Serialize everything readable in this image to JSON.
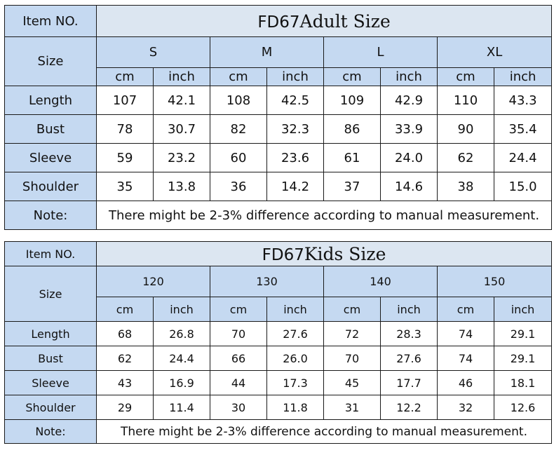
{
  "adult": {
    "item_label": "Item NO.",
    "code": "FD67",
    "title": "Adult Size",
    "size_label": "Size",
    "sizes": [
      "S",
      "M",
      "L",
      "XL"
    ],
    "units": [
      "cm",
      "inch"
    ],
    "rows": [
      {
        "label": "Length",
        "values": [
          "107",
          "42.1",
          "108",
          "42.5",
          "109",
          "42.9",
          "110",
          "43.3"
        ]
      },
      {
        "label": "Bust",
        "values": [
          "78",
          "30.7",
          "82",
          "32.3",
          "86",
          "33.9",
          "90",
          "35.4"
        ]
      },
      {
        "label": "Sleeve",
        "values": [
          "59",
          "23.2",
          "60",
          "23.6",
          "61",
          "24.0",
          "62",
          "24.4"
        ]
      },
      {
        "label": "Shoulder",
        "values": [
          "35",
          "13.8",
          "36",
          "14.2",
          "37",
          "14.6",
          "38",
          "15.0"
        ]
      }
    ],
    "note_label": "Note:",
    "note_text": "There might be 2-3% difference according to manual measurement."
  },
  "kids": {
    "item_label": "Item NO.",
    "code": "FD67",
    "title": "Kids Size",
    "size_label": "Size",
    "sizes": [
      "120",
      "130",
      "140",
      "150"
    ],
    "units": [
      "cm",
      "inch"
    ],
    "rows": [
      {
        "label": "Length",
        "values": [
          "68",
          "26.8",
          "70",
          "27.6",
          "72",
          "28.3",
          "74",
          "29.1"
        ]
      },
      {
        "label": "Bust",
        "values": [
          "62",
          "24.4",
          "66",
          "26.0",
          "70",
          "27.6",
          "74",
          "29.1"
        ]
      },
      {
        "label": "Sleeve",
        "values": [
          "43",
          "16.9",
          "44",
          "17.3",
          "45",
          "17.7",
          "46",
          "18.1"
        ]
      },
      {
        "label": "Shoulder",
        "values": [
          "29",
          "11.4",
          "30",
          "11.8",
          "31",
          "12.2",
          "32",
          "12.6"
        ]
      }
    ],
    "note_label": "Note:",
    "note_text": "There might be 2-3% difference according to manual measurement."
  },
  "colors": {
    "header_bg": "#c5d9f1",
    "title_bg": "#dce6f1",
    "cell_bg": "#ffffff",
    "border": "#1a1a1a"
  }
}
